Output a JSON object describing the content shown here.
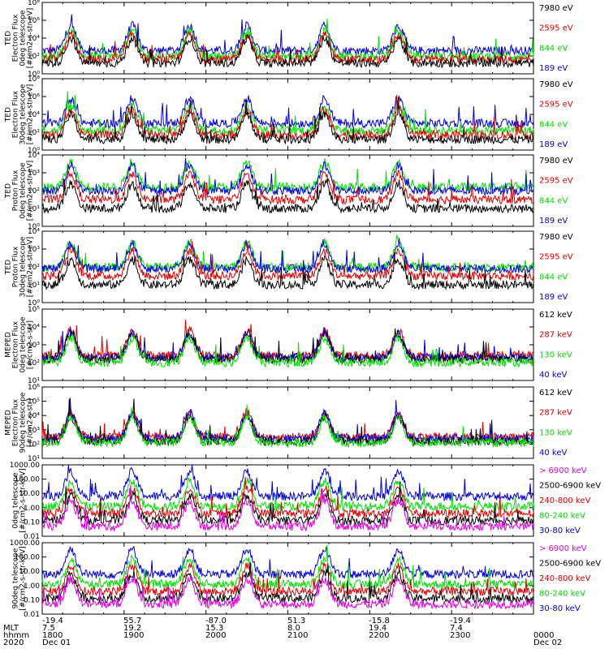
{
  "chart_data": [
    {
      "type": "line",
      "ylabel": [
        "TED",
        "Electron Flux",
        "0deg telescope",
        "[#/cm2-s-str-eV]"
      ],
      "ytick_labels": [
        "10⁰",
        "10²",
        "10⁴",
        "10⁶",
        "10⁸"
      ],
      "ylim_log": [
        0,
        8
      ],
      "series": [
        {
          "name": "7980 eV",
          "color": "#000000",
          "level": 1.2
        },
        {
          "name": "2595 eV",
          "color": "#e00000",
          "level": 1.6
        },
        {
          "name": "844 eV",
          "color": "#00e000",
          "level": 2.0
        },
        {
          "name": "189 eV",
          "color": "#0000e0",
          "level": 2.6
        }
      ]
    },
    {
      "type": "line",
      "ylabel": [
        "TED",
        "Electron Flux",
        "30deg telescope",
        "[#/cm2-s-str-eV]"
      ],
      "ytick_labels": [
        "10⁰",
        "10²",
        "10⁴",
        "10⁶",
        "10⁸"
      ],
      "ylim_log": [
        0,
        8
      ],
      "series": [
        {
          "name": "7980 eV",
          "color": "#000000",
          "level": 1.2
        },
        {
          "name": "2595 eV",
          "color": "#e00000",
          "level": 1.7
        },
        {
          "name": "844 eV",
          "color": "#00e000",
          "level": 2.2
        },
        {
          "name": "189 eV",
          "color": "#0000e0",
          "level": 3.0
        }
      ]
    },
    {
      "type": "line",
      "ylabel": [
        "TED",
        "Proton Flux",
        "0deg telescope",
        "[#/cm2-s-str-eV]"
      ],
      "ytick_labels": [
        "10⁰",
        "10¹",
        "10²",
        "10³",
        "10⁴"
      ],
      "ylim_log": [
        0,
        4
      ],
      "series": [
        {
          "name": "7980 eV",
          "color": "#000000",
          "level": 1.0
        },
        {
          "name": "2595 eV",
          "color": "#e00000",
          "level": 1.5
        },
        {
          "name": "844 eV",
          "color": "#00e000",
          "level": 2.2
        },
        {
          "name": "189 eV",
          "color": "#0000e0",
          "level": 2.0
        }
      ]
    },
    {
      "type": "line",
      "ylabel": [
        "TED",
        "Proton Flux",
        "30deg telescope",
        "[#/cm2-s-str-eV]"
      ],
      "ytick_labels": [
        "10⁰",
        "10¹",
        "10²",
        "10³",
        "10⁴"
      ],
      "ylim_log": [
        0,
        4
      ],
      "series": [
        {
          "name": "7980 eV",
          "color": "#000000",
          "level": 1.0
        },
        {
          "name": "2595 eV",
          "color": "#e00000",
          "level": 1.5
        },
        {
          "name": "844 eV",
          "color": "#00e000",
          "level": 2.0
        },
        {
          "name": "189 eV",
          "color": "#0000e0",
          "level": 1.9
        }
      ]
    },
    {
      "type": "line",
      "ylabel": [
        "MEPED",
        "Electron Flux",
        "0deg telescope",
        "[#/cm2-s-str]"
      ],
      "ytick_labels": [
        "10¹",
        "10²",
        "10³",
        "10⁴",
        "10⁵"
      ],
      "ylim_log": [
        1,
        5
      ],
      "series": [
        {
          "name": "612 keV",
          "color": "#000000",
          "level": 2.2
        },
        {
          "name": "287 keV",
          "color": "#e00000",
          "level": 2.4
        },
        {
          "name": "130 keV",
          "color": "#00e000",
          "level": 2.0
        },
        {
          "name": "40 keV",
          "color": "#0000e0",
          "level": 2.3
        }
      ]
    },
    {
      "type": "line",
      "ylabel": [
        "MEPED",
        "Electron Flux",
        "90deg telescope",
        "[#/cm2-s-str]"
      ],
      "ytick_labels": [
        "10¹",
        "10²",
        "10³",
        "10⁴",
        "10⁵",
        "10⁶"
      ],
      "ylim_log": [
        1,
        6
      ],
      "series": [
        {
          "name": "612 keV",
          "color": "#000000",
          "level": 2.2
        },
        {
          "name": "287 keV",
          "color": "#e00000",
          "level": 2.5
        },
        {
          "name": "130 keV",
          "color": "#00e000",
          "level": 2.1
        },
        {
          "name": "40 keV",
          "color": "#0000e0",
          "level": 2.4
        }
      ]
    },
    {
      "type": "line",
      "ylabel": [
        "0deg telescope",
        "[#/cm2-s-str-keV]"
      ],
      "ytick_labels": [
        "0.01",
        "0.10",
        "1.00",
        "10.00",
        "100.00",
        "1000.00"
      ],
      "ylim_log": [
        -2,
        3
      ],
      "series": [
        {
          "name": "> 6900 keV",
          "color": "#e000e0",
          "level": -1.3
        },
        {
          "name": "2500-6900 keV",
          "color": "#000000",
          "level": -0.9
        },
        {
          "name": "240-800 keV",
          "color": "#e00000",
          "level": -0.4
        },
        {
          "name": "80-240 keV",
          "color": "#00e000",
          "level": 0.1
        },
        {
          "name": "30-80 keV",
          "color": "#0000e0",
          "level": 0.8
        }
      ]
    },
    {
      "type": "line",
      "ylabel": [
        "90deg telescope",
        "[#/cm2-s-str-keV]"
      ],
      "ytick_labels": [
        "0.01",
        "0.10",
        "1.00",
        "10.00",
        "100.00",
        "1000.00"
      ],
      "ylim_log": [
        -2,
        3
      ],
      "series": [
        {
          "name": "> 6900 keV",
          "color": "#e000e0",
          "level": -1.3
        },
        {
          "name": "2500-6900 keV",
          "color": "#000000",
          "level": -0.9
        },
        {
          "name": "240-800 keV",
          "color": "#e00000",
          "level": -0.4
        },
        {
          "name": "80-240 keV",
          "color": "#00e000",
          "level": 0.1
        },
        {
          "name": "30-80 keV",
          "color": "#0000e0",
          "level": 0.8
        }
      ]
    }
  ],
  "x_axis": {
    "row_labels": [
      "",
      "MLT",
      "hhmm",
      "2020"
    ],
    "columns": [
      [
        "-19.4",
        "7.5",
        "1800",
        "Dec 01"
      ],
      [
        "55.7",
        "19.2",
        "1900",
        ""
      ],
      [
        "-87.0",
        "15.3",
        "2000",
        ""
      ],
      [
        "51.3",
        "8.0",
        "2100",
        ""
      ],
      [
        "-15.8",
        "19.4",
        "2200",
        ""
      ],
      [
        "-19.4",
        "7.4",
        "2300",
        ""
      ],
      [
        "",
        "",
        "0000",
        "Dec 02"
      ]
    ],
    "pass_centers_hours": [
      0.35,
      1.1,
      1.8,
      2.5,
      3.45,
      4.35
    ]
  }
}
